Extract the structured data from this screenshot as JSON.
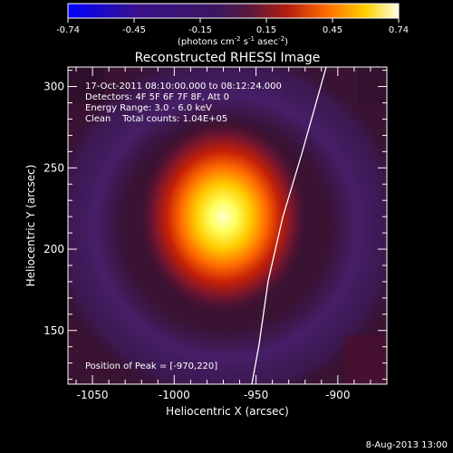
{
  "colorbar": {
    "ticks": [
      "-0.74",
      "-0.45",
      "-0.15",
      "0.15",
      "0.45",
      "0.74"
    ],
    "units_main": "(photons cm",
    "units_sup1": "-2",
    "units_mid": " s",
    "units_sup2": "-1",
    "units_end": " asec",
    "units_sup3": "-2",
    "units_close": ")"
  },
  "image": {
    "title": "Reconstructed RHESSI Image",
    "info": [
      "17-Oct-2011 08:10:00.000 to 08:12:24.000",
      "Detectors: 4F 5F 6F 7F 8F, Att 0",
      "Energy Range: 3.0 - 6.0 keV",
      "Clean    Total counts: 1.04E+05"
    ],
    "peak_label": "Position of Peak = [-970,220]",
    "xlabel": "Heliocentric X (arcsec)",
    "ylabel": "Heliocentric Y (arcsec)",
    "x_ticks": [
      "-1050",
      "-1000",
      "-950",
      "-900"
    ],
    "y_ticks": [
      "150",
      "200",
      "250",
      "300"
    ],
    "x_range": [
      -1065,
      -870
    ],
    "y_range": [
      117,
      312
    ],
    "peak": [
      -970,
      220
    ],
    "limb_color": "#ffffff",
    "colormap": "red-temperature"
  },
  "footer": {
    "timestamp": "8-Aug-2013 13:00"
  }
}
